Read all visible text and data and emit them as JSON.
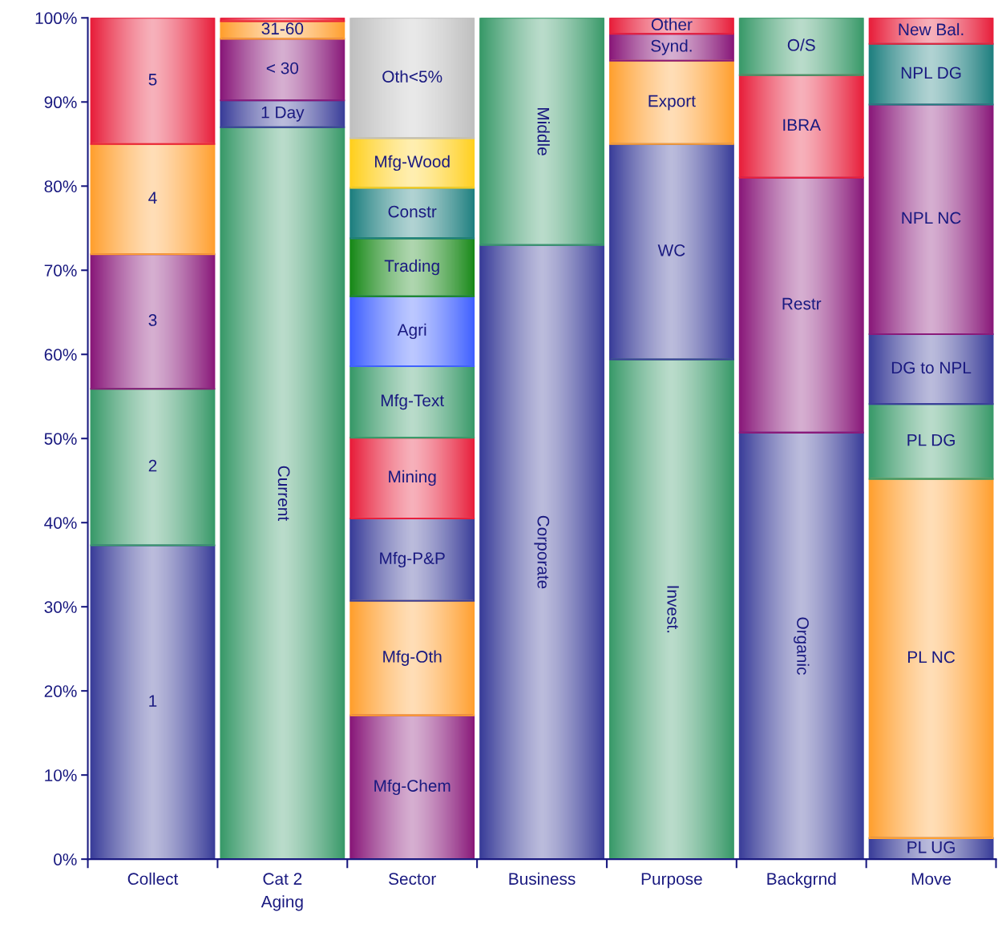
{
  "chart_data": {
    "type": "bar",
    "stacked": true,
    "legend": false,
    "grid": false,
    "categories": [
      "Collect",
      "Cat 2\nAging",
      "Sector",
      "Business",
      "Purpose",
      "Backgrnd",
      "Move"
    ],
    "ylim": [
      0,
      100
    ],
    "yticks": [
      {
        "value": 0,
        "label": "0%"
      },
      {
        "value": 10,
        "label": "10%"
      },
      {
        "value": 20,
        "label": "20%"
      },
      {
        "value": 30,
        "label": "30%"
      },
      {
        "value": 40,
        "label": "40%"
      },
      {
        "value": 50,
        "label": "50%"
      },
      {
        "value": 60,
        "label": "60%"
      },
      {
        "value": 70,
        "label": "70%"
      },
      {
        "value": 80,
        "label": "80%"
      },
      {
        "value": 90,
        "label": "90%"
      },
      {
        "value": 100,
        "label": "100%"
      }
    ],
    "series": [
      {
        "name": "1",
        "color": "#3b3f9a",
        "values": [
          37.3,
          null,
          null,
          null,
          null,
          null,
          null
        ]
      },
      {
        "name": "2",
        "color": "#3a9a6a",
        "values": [
          18.6,
          null,
          null,
          null,
          null,
          null,
          null
        ]
      },
      {
        "name": "3",
        "color": "#8a1a7a",
        "values": [
          16,
          null,
          null,
          null,
          null,
          null,
          null
        ]
      },
      {
        "name": "4",
        "color": "#ffa030",
        "values": [
          13.1,
          null,
          null,
          null,
          null,
          null,
          null
        ]
      },
      {
        "name": "5",
        "color": "#e8203c",
        "values": [
          15,
          null,
          null,
          null,
          null,
          null,
          null
        ]
      },
      {
        "name": "Current",
        "color": "#3a9a6a",
        "values": [
          null,
          87,
          null,
          null,
          null,
          null,
          null
        ]
      },
      {
        "name": "1 Day",
        "color": "#3b3f9a",
        "values": [
          null,
          3.2,
          null,
          null,
          null,
          null,
          null
        ]
      },
      {
        "name": "< 30",
        "color": "#8a1a7a",
        "values": [
          null,
          7.3,
          null,
          null,
          null,
          null,
          null
        ]
      },
      {
        "name": "31-60",
        "color": "#ffa030",
        "values": [
          null,
          2.1,
          null,
          null,
          null,
          null,
          null
        ]
      },
      {
        "color": "#e8203c",
        "values": [
          null,
          0.4,
          null,
          null,
          null,
          null,
          null
        ]
      },
      {
        "name": "Mfg-Chem",
        "color": "#8a1a7a",
        "values": [
          null,
          null,
          17.1,
          null,
          null,
          null,
          null
        ]
      },
      {
        "name": "Mfg-Oth",
        "color": "#ffa030",
        "values": [
          null,
          null,
          13.6,
          null,
          null,
          null,
          null
        ]
      },
      {
        "name": "Mfg-P&P",
        "color": "#3b3f9a",
        "values": [
          null,
          null,
          9.8,
          null,
          null,
          null,
          null
        ]
      },
      {
        "name": "Mining",
        "color": "#e8203c",
        "values": [
          null,
          null,
          9.6,
          null,
          null,
          null,
          null
        ]
      },
      {
        "name": "Mfg-Text",
        "color": "#3a9a6a",
        "values": [
          null,
          null,
          8.5,
          null,
          null,
          null,
          null
        ]
      },
      {
        "name": "Agri",
        "color": "#4060ff",
        "values": [
          null,
          null,
          8.3,
          null,
          null,
          null,
          null
        ]
      },
      {
        "name": "Trading",
        "color": "#1a8a1a",
        "values": [
          null,
          null,
          6.9,
          null,
          null,
          null,
          null
        ]
      },
      {
        "name": "Constr",
        "color": "#208080",
        "values": [
          null,
          null,
          6.0,
          null,
          null,
          null,
          null
        ]
      },
      {
        "name": "Mfg-Wood",
        "color": "#ffd020",
        "values": [
          null,
          null,
          5.9,
          null,
          null,
          null,
          null
        ]
      },
      {
        "name": "Oth<5%",
        "color": "#c0c0c0",
        "values": [
          null,
          null,
          14.3,
          null,
          null,
          null,
          null
        ]
      },
      {
        "name": "Corporate",
        "color": "#3b3f9a",
        "values": [
          null,
          null,
          null,
          73,
          null,
          null,
          null
        ]
      },
      {
        "name": "Middle",
        "color": "#3a9a6a",
        "values": [
          null,
          null,
          null,
          27,
          null,
          null,
          null
        ]
      },
      {
        "name": "Invest.",
        "color": "#3a9a6a",
        "values": [
          null,
          null,
          null,
          null,
          59.4,
          null,
          null
        ]
      },
      {
        "name": "WC",
        "color": "#3b3f9a",
        "values": [
          null,
          null,
          null,
          null,
          25.6,
          null,
          null
        ]
      },
      {
        "name": "Export",
        "color": "#ffa030",
        "values": [
          null,
          null,
          null,
          null,
          9.9,
          null,
          null
        ]
      },
      {
        "name": "Synd.",
        "color": "#8a1a7a",
        "values": [
          null,
          null,
          null,
          null,
          3.2,
          null,
          null
        ]
      },
      {
        "name": "Other",
        "color": "#e8203c",
        "values": [
          null,
          null,
          null,
          null,
          1.9,
          null,
          null
        ]
      },
      {
        "name": "Organic",
        "color": "#3b3f9a",
        "values": [
          null,
          null,
          null,
          null,
          null,
          50.7,
          null
        ]
      },
      {
        "name": "Restr",
        "color": "#8a1a7a",
        "values": [
          null,
          null,
          null,
          null,
          null,
          30.3,
          null
        ]
      },
      {
        "name": "IBRA",
        "color": "#e8203c",
        "values": [
          null,
          null,
          null,
          null,
          null,
          12.2,
          null
        ]
      },
      {
        "name": "O/S",
        "color": "#3a9a6a",
        "values": [
          null,
          null,
          null,
          null,
          null,
          6.8,
          null
        ]
      },
      {
        "name": "PL UG",
        "color": "#3b3f9a",
        "values": [
          null,
          null,
          null,
          null,
          null,
          null,
          2.5
        ]
      },
      {
        "name": "PL NC",
        "color": "#ffa030",
        "values": [
          null,
          null,
          null,
          null,
          null,
          null,
          42.7
        ]
      },
      {
        "name": "PL DG",
        "color": "#3a9a6a",
        "values": [
          null,
          null,
          null,
          null,
          null,
          null,
          8.9
        ]
      },
      {
        "name": "DG to NPL",
        "color": "#3b3f9a",
        "values": [
          null,
          null,
          null,
          null,
          null,
          null,
          8.3
        ]
      },
      {
        "name": "NPL NC",
        "color": "#8a1a7a",
        "values": [
          null,
          null,
          null,
          null,
          null,
          null,
          27.3
        ]
      },
      {
        "name": "NPL DG",
        "color": "#208080",
        "values": [
          null,
          null,
          null,
          null,
          null,
          null,
          7.2
        ]
      },
      {
        "name": "New Bal.",
        "color": "#e8203c",
        "values": [
          null,
          null,
          null,
          null,
          null,
          null,
          3.1
        ]
      }
    ]
  }
}
